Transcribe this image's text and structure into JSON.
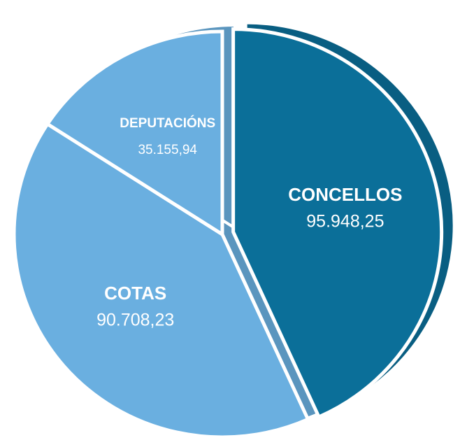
{
  "chart_data": {
    "type": "pie",
    "categories": [
      "CONCELLOS",
      "COTAS",
      "DEPUTACIÓNS"
    ],
    "values": [
      95948.25,
      90708.23,
      35155.94
    ],
    "value_labels": [
      "95.948,25",
      "90.708,23",
      "35.155,94"
    ],
    "colors": [
      "#0b6f99",
      "#6aafe0",
      "#6aafe0"
    ],
    "exploded": [
      true,
      false,
      false
    ]
  }
}
